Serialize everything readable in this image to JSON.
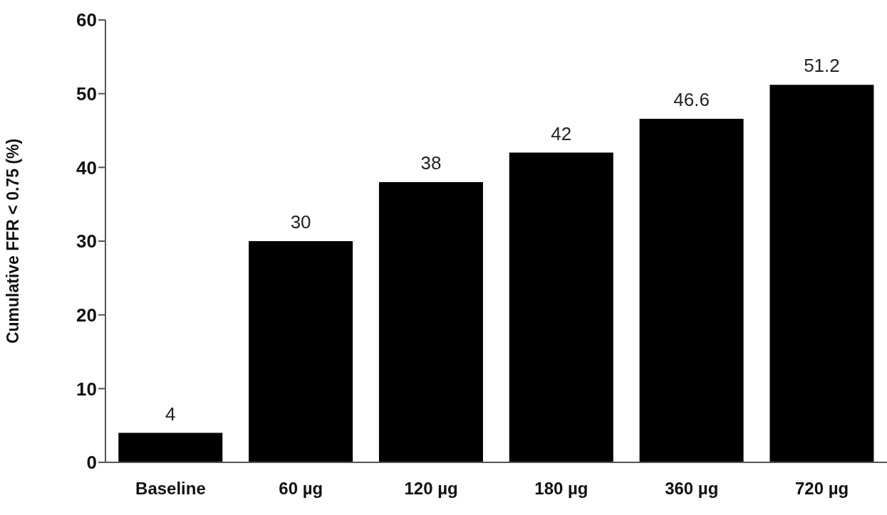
{
  "chart_data": {
    "type": "bar",
    "ylabel": "Cumulative FFR < 0.75 (%)",
    "categories": [
      "Baseline",
      "60 µg",
      "120 µg",
      "180 µg",
      "360 µg",
      "720 µg"
    ],
    "values": [
      4,
      30,
      38,
      42,
      46.6,
      51.2
    ],
    "color": "#000000",
    "ylim": [
      0,
      60
    ],
    "yticks": [
      0,
      10,
      20,
      30,
      40,
      50,
      60
    ],
    "grid": false,
    "data_labels": true
  }
}
